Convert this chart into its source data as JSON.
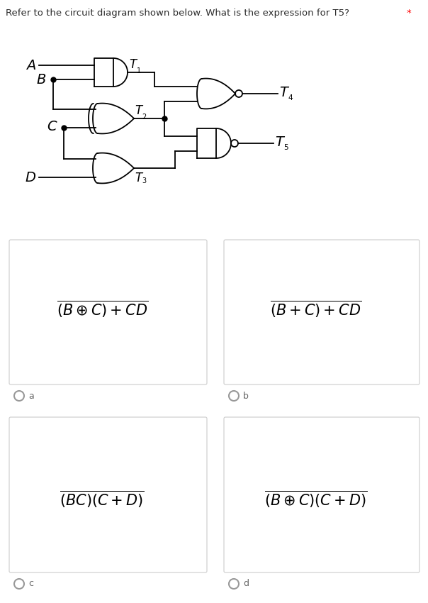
{
  "title": "Refer to the circuit diagram shown below. What is the expression for T5?",
  "asterisk": "*",
  "title_color": "#2d2d2d",
  "asterisk_color": "#ff0000",
  "bg_color": "#ffffff",
  "box_facecolor": "#ffffff",
  "box_edgecolor": "#cccccc",
  "radio_color": "#999999",
  "expr_a": "$\\overline{(B\\oplus C)+CD}$",
  "expr_b": "$\\overline{(B+C)+CD}$",
  "expr_c": "$\\overline{(BC)(C+D)}$",
  "expr_d": "$\\overline{(B\\oplus C)(C+D)}$",
  "labels": [
    "a",
    "b",
    "c",
    "d"
  ]
}
